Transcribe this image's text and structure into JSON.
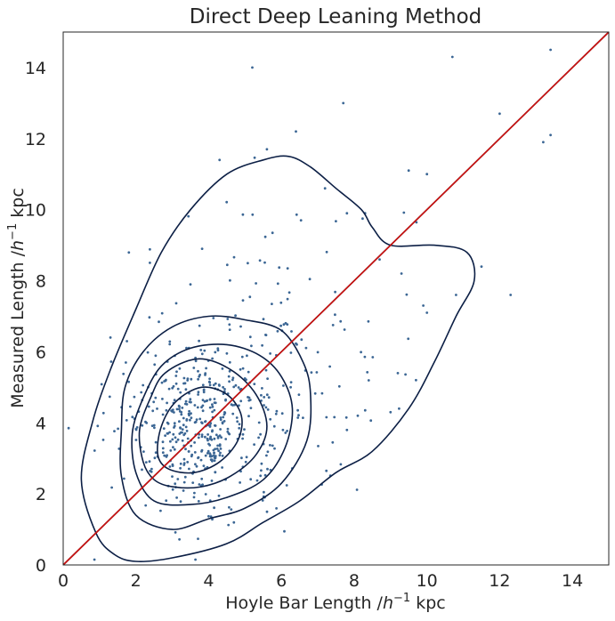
{
  "chart_data": {
    "type": "scatter",
    "title": "Direct Deep Leaning Method",
    "xlabel": {
      "prefix": "Hoyle Bar Length /",
      "var": "h",
      "exp": "−1",
      "suffix": " kpc"
    },
    "ylabel": {
      "prefix": "Measured Length /",
      "var": "h",
      "exp": "−1",
      "suffix": " kpc"
    },
    "xlim": [
      0,
      15
    ],
    "ylim": [
      0,
      15
    ],
    "xticks": [
      "0",
      "2",
      "4",
      "6",
      "8",
      "10",
      "12",
      "14"
    ],
    "yticks": [
      "0",
      "2",
      "4",
      "6",
      "8",
      "10",
      "12",
      "14"
    ],
    "grid": false,
    "legend": "none",
    "colors": {
      "points": "#3b6694",
      "contours": "#0c1f45",
      "identity_line": "#000000",
      "fit_line": "#cc1111"
    },
    "lines": [
      {
        "role": "identity",
        "x": [
          0,
          15
        ],
        "y": [
          0,
          15
        ]
      },
      {
        "role": "fit",
        "x": [
          0,
          15
        ],
        "y": [
          0,
          15.1
        ]
      }
    ],
    "contours": [
      [
        [
          2.0,
          0.1
        ],
        [
          3.0,
          0.2
        ],
        [
          4.5,
          0.6
        ],
        [
          5.5,
          1.2
        ],
        [
          6.5,
          1.8
        ],
        [
          7.5,
          2.6
        ],
        [
          8.5,
          3.2
        ],
        [
          9.5,
          4.4
        ],
        [
          10.2,
          5.7
        ],
        [
          10.8,
          7.0
        ],
        [
          11.3,
          8.0
        ],
        [
          11.1,
          8.8
        ],
        [
          10.2,
          9.0
        ],
        [
          9.0,
          9.0
        ],
        [
          8.5,
          9.5
        ],
        [
          8.2,
          10.0
        ],
        [
          7.5,
          10.6
        ],
        [
          6.8,
          11.2
        ],
        [
          6.2,
          11.5
        ],
        [
          5.5,
          11.4
        ],
        [
          4.5,
          11.0
        ],
        [
          3.5,
          10.0
        ],
        [
          2.7,
          8.8
        ],
        [
          2.0,
          7.2
        ],
        [
          1.3,
          5.5
        ],
        [
          0.8,
          4.0
        ],
        [
          0.5,
          2.4
        ],
        [
          0.9,
          0.9
        ],
        [
          1.4,
          0.3
        ]
      ],
      [
        [
          2.0,
          1.4
        ],
        [
          3.0,
          1.0
        ],
        [
          4.0,
          1.3
        ],
        [
          5.0,
          1.6
        ],
        [
          6.0,
          2.3
        ],
        [
          6.7,
          3.5
        ],
        [
          6.8,
          4.8
        ],
        [
          6.6,
          5.7
        ],
        [
          6.0,
          6.6
        ],
        [
          5.0,
          6.9
        ],
        [
          4.0,
          7.0
        ],
        [
          3.0,
          6.7
        ],
        [
          2.2,
          6.0
        ],
        [
          1.7,
          5.0
        ],
        [
          1.6,
          3.8
        ],
        [
          1.6,
          2.5
        ]
      ],
      [
        [
          2.5,
          1.8
        ],
        [
          3.5,
          1.7
        ],
        [
          4.5,
          1.9
        ],
        [
          5.5,
          2.4
        ],
        [
          6.1,
          3.3
        ],
        [
          6.3,
          4.4
        ],
        [
          6.0,
          5.3
        ],
        [
          5.4,
          5.9
        ],
        [
          4.5,
          6.2
        ],
        [
          3.5,
          6.1
        ],
        [
          2.7,
          5.6
        ],
        [
          2.2,
          4.7
        ],
        [
          1.9,
          3.7
        ],
        [
          2.0,
          2.6
        ]
      ],
      [
        [
          3.0,
          2.2
        ],
        [
          3.8,
          2.2
        ],
        [
          4.6,
          2.5
        ],
        [
          5.3,
          3.1
        ],
        [
          5.6,
          3.9
        ],
        [
          5.3,
          4.8
        ],
        [
          4.6,
          5.5
        ],
        [
          3.7,
          5.8
        ],
        [
          2.8,
          5.4
        ],
        [
          2.4,
          4.7
        ],
        [
          2.1,
          3.8
        ],
        [
          2.2,
          2.9
        ],
        [
          2.5,
          2.4
        ]
      ],
      [
        [
          2.9,
          2.7
        ],
        [
          3.6,
          2.6
        ],
        [
          4.3,
          2.9
        ],
        [
          4.8,
          3.5
        ],
        [
          4.9,
          4.2
        ],
        [
          4.5,
          4.8
        ],
        [
          3.8,
          5.0
        ],
        [
          3.1,
          4.6
        ],
        [
          2.7,
          3.9
        ],
        [
          2.6,
          3.1
        ]
      ]
    ]
  }
}
